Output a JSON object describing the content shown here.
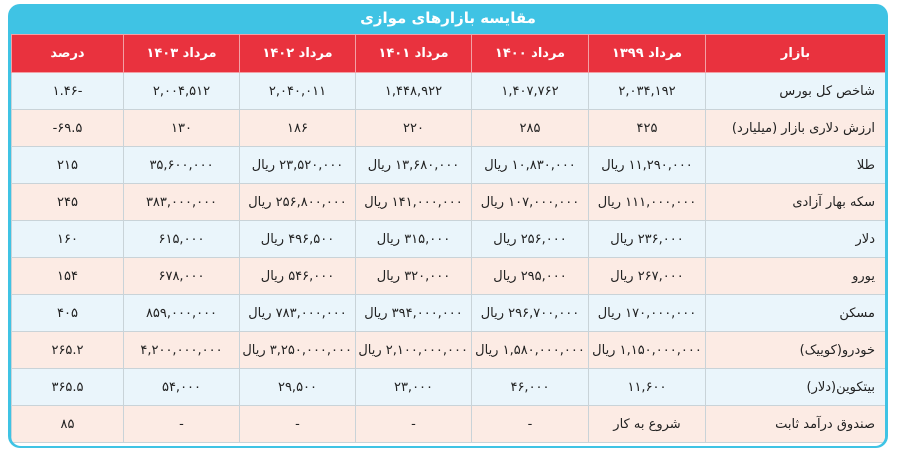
{
  "title": "مقایسه بازارهای موازی",
  "table": {
    "header": [
      "بازار",
      "مرداد ۱۳۹۹",
      "مرداد ۱۴۰۰",
      "مرداد ۱۴۰۱",
      "مرداد ۱۴۰۲",
      "مرداد ۱۴۰۳",
      "درصد"
    ],
    "rows": [
      [
        "شاخص کل بورس",
        "۲,۰۳۴,۱۹۲",
        "۱,۴۰۷,۷۶۲",
        "۱,۴۴۸,۹۲۲",
        "۲,۰۴۰,۰۱۱",
        "۲,۰۰۴,۵۱۲",
        "-۱.۴۶"
      ],
      [
        "ارزش دلاری بازار (میلیارد)",
        "۴۲۵",
        "۲۸۵",
        "۲۲۰",
        "۱۸۶",
        "۱۳۰",
        "۶۹.۵-"
      ],
      [
        "طلا",
        "۱۱,۲۹۰,۰۰۰ ریال",
        "۱۰,۸۳۰,۰۰۰ ریال",
        "۱۳,۶۸۰,۰۰۰ ریال",
        "۲۳,۵۲۰,۰۰۰ ریال",
        "۳۵,۶۰۰,۰۰۰",
        "۲۱۵"
      ],
      [
        "سکه بهار آزادی",
        "۱۱۱,۰۰۰,۰۰۰ ریال",
        "۱۰۷,۰۰۰,۰۰۰ ریال",
        "۱۴۱,۰۰۰,۰۰۰ ریال",
        "۲۵۶,۸۰۰,۰۰۰ ریال",
        "۳۸۳,۰۰۰,۰۰۰",
        "۲۴۵"
      ],
      [
        "دلار",
        "۲۳۶,۰۰۰ ریال",
        "۲۵۶,۰۰۰ ریال",
        "۳۱۵,۰۰۰ ریال",
        "۴۹۶,۵۰۰ ریال",
        "۶۱۵,۰۰۰",
        "۱۶۰"
      ],
      [
        "یورو",
        "۲۶۷,۰۰۰ ریال",
        "۲۹۵,۰۰۰ ریال",
        "۳۲۰,۰۰۰ ریال",
        "۵۴۶,۰۰۰ ریال",
        "۶۷۸,۰۰۰",
        "۱۵۴"
      ],
      [
        "مسکن",
        "۱۷۰,۰۰۰,۰۰۰ ریال",
        "۲۹۶,۷۰۰,۰۰۰ ریال",
        "۳۹۴,۰۰۰,۰۰۰ ریال",
        "۷۸۳,۰۰۰,۰۰۰ ریال",
        "۸۵۹,۰۰۰,۰۰۰",
        "۴۰۵"
      ],
      [
        "خودرو(کوییک)",
        "۱,۱۵۰,۰۰۰,۰۰۰ ریال",
        "۱,۵۸۰,۰۰۰,۰۰۰ ریال",
        "۲,۱۰۰,۰۰۰,۰۰۰ ریال",
        "۳,۲۵۰,۰۰۰,۰۰۰ ریال",
        "۴,۲۰۰,۰۰۰,۰۰۰",
        "۲۶۵.۲"
      ],
      [
        "بیتکوین(دلار)",
        "۱۱,۶۰۰",
        "۴۶,۰۰۰",
        "۲۳,۰۰۰",
        "۲۹,۵۰۰",
        "۵۴,۰۰۰",
        "۳۶۵.۵"
      ],
      [
        "صندوق درآمد ثابت",
        "شروع به کار",
        "-",
        "-",
        "-",
        "-",
        "۸۵"
      ]
    ]
  }
}
